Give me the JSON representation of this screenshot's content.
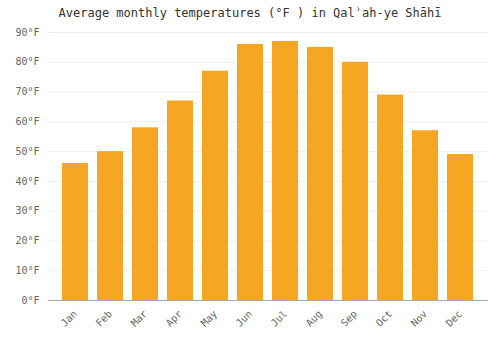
{
  "chart_data": {
    "type": "bar",
    "title": "Average monthly temperatures (°F ) in Qalʾah-ye Shāhī",
    "categories": [
      "Jan",
      "Feb",
      "Mar",
      "Apr",
      "May",
      "Jun",
      "Jul",
      "Aug",
      "Sep",
      "Oct",
      "Nov",
      "Dec"
    ],
    "values": [
      46,
      50,
      58,
      67,
      77,
      86,
      87,
      85,
      80,
      69,
      57,
      49
    ],
    "color": "#F5A623",
    "ylim": [
      0,
      90
    ],
    "yticks": [
      {
        "value": 0,
        "label": "0°F"
      },
      {
        "value": 10,
        "label": "10°F"
      },
      {
        "value": 20,
        "label": "20°F"
      },
      {
        "value": 30,
        "label": "30°F"
      },
      {
        "value": 40,
        "label": "40°F"
      },
      {
        "value": 50,
        "label": "50°F"
      },
      {
        "value": 60,
        "label": "60°F"
      },
      {
        "value": 70,
        "label": "70°F"
      },
      {
        "value": 80,
        "label": "80°F"
      },
      {
        "value": 90,
        "label": "90°F"
      }
    ],
    "grid": true
  }
}
